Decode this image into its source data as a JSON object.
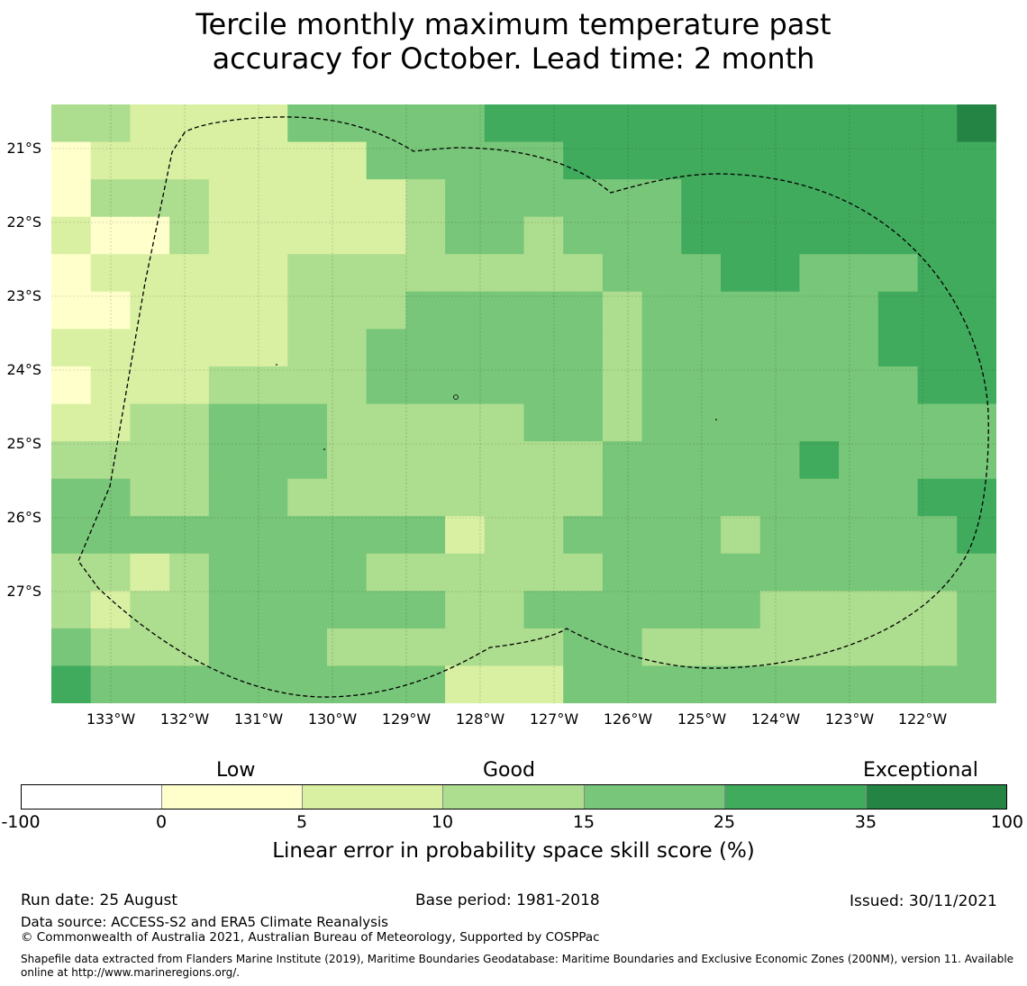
{
  "title_line1": "Tercile monthly maximum temperature past",
  "title_line2": "accuracy for October. Lead time: 2 month",
  "colors": {
    "lt0": "#ffffff",
    "b0_5": "#ffffcc",
    "b5_10": "#d9f0a3",
    "b10_15": "#addd8e",
    "b15_25": "#78c679",
    "b25_35": "#41ab5d",
    "b35_100": "#238443"
  },
  "chart_data": {
    "type": "heatmap",
    "lon_ticks": [
      "133°W",
      "132°W",
      "131°W",
      "130°W",
      "129°W",
      "128°W",
      "127°W",
      "126°W",
      "125°W",
      "124°W",
      "123°W",
      "122°W"
    ],
    "lat_ticks": [
      "21°S",
      "22°S",
      "23°S",
      "24°S",
      "25°S",
      "26°S",
      "27°S"
    ],
    "grid_legend": "cell value = colour class (0:<0, 1:0-5, 2:5-10, 3:10-15, 4:15-25, 5:25-35, 6:35-100)",
    "grid": [
      [
        3,
        3,
        2,
        2,
        2,
        2,
        4,
        4,
        4,
        4,
        4,
        5,
        5,
        5,
        5,
        5,
        5,
        5,
        5,
        5,
        5,
        5,
        5,
        6
      ],
      [
        1,
        2,
        2,
        2,
        2,
        2,
        2,
        2,
        4,
        4,
        4,
        4,
        4,
        5,
        5,
        5,
        5,
        5,
        5,
        5,
        5,
        5,
        5,
        5
      ],
      [
        1,
        3,
        3,
        3,
        2,
        2,
        2,
        2,
        2,
        3,
        4,
        4,
        4,
        4,
        4,
        4,
        5,
        5,
        5,
        5,
        5,
        5,
        5,
        5
      ],
      [
        2,
        1,
        1,
        3,
        2,
        2,
        2,
        2,
        2,
        3,
        4,
        4,
        3,
        4,
        4,
        4,
        5,
        5,
        5,
        5,
        5,
        5,
        5,
        5
      ],
      [
        1,
        2,
        2,
        2,
        2,
        2,
        3,
        3,
        3,
        3,
        3,
        3,
        3,
        3,
        4,
        4,
        4,
        5,
        5,
        4,
        4,
        4,
        5,
        5
      ],
      [
        1,
        1,
        2,
        2,
        2,
        2,
        3,
        3,
        3,
        4,
        4,
        4,
        4,
        4,
        3,
        4,
        4,
        4,
        4,
        4,
        4,
        5,
        5,
        5
      ],
      [
        2,
        2,
        2,
        2,
        2,
        2,
        3,
        3,
        4,
        4,
        4,
        4,
        4,
        4,
        3,
        4,
        4,
        4,
        4,
        4,
        4,
        5,
        5,
        5
      ],
      [
        1,
        2,
        2,
        2,
        3,
        3,
        3,
        3,
        4,
        4,
        4,
        4,
        4,
        4,
        3,
        4,
        4,
        4,
        4,
        4,
        4,
        4,
        5,
        5
      ],
      [
        2,
        2,
        3,
        3,
        4,
        4,
        4,
        3,
        3,
        3,
        3,
        3,
        4,
        4,
        3,
        4,
        4,
        4,
        4,
        4,
        4,
        4,
        4,
        4
      ],
      [
        3,
        3,
        3,
        3,
        4,
        4,
        4,
        3,
        3,
        3,
        3,
        3,
        3,
        3,
        4,
        4,
        4,
        4,
        4,
        5,
        4,
        4,
        4,
        4
      ],
      [
        4,
        4,
        3,
        3,
        4,
        4,
        3,
        3,
        3,
        3,
        3,
        3,
        3,
        3,
        4,
        4,
        4,
        4,
        4,
        4,
        4,
        4,
        5,
        5
      ],
      [
        4,
        4,
        4,
        4,
        4,
        4,
        4,
        4,
        4,
        4,
        2,
        3,
        3,
        4,
        4,
        4,
        4,
        3,
        4,
        4,
        4,
        4,
        4,
        5
      ],
      [
        3,
        3,
        2,
        3,
        4,
        4,
        4,
        4,
        3,
        3,
        3,
        3,
        3,
        3,
        4,
        4,
        4,
        4,
        4,
        4,
        4,
        4,
        4,
        4
      ],
      [
        3,
        2,
        3,
        3,
        4,
        4,
        4,
        4,
        4,
        4,
        3,
        3,
        4,
        4,
        4,
        4,
        4,
        4,
        3,
        3,
        3,
        3,
        3,
        4
      ],
      [
        4,
        3,
        3,
        3,
        4,
        4,
        4,
        3,
        3,
        3,
        3,
        3,
        3,
        4,
        4,
        3,
        3,
        3,
        3,
        3,
        3,
        3,
        3,
        4
      ],
      [
        5,
        4,
        4,
        4,
        4,
        4,
        4,
        4,
        4,
        4,
        2,
        2,
        2,
        4,
        4,
        4,
        4,
        4,
        4,
        4,
        4,
        4,
        4,
        4
      ]
    ]
  },
  "colorbar": {
    "category_low": "Low",
    "category_good": "Good",
    "category_exceptional": "Exceptional",
    "ticks": [
      "-100",
      "0",
      "5",
      "10",
      "15",
      "25",
      "35",
      "100"
    ],
    "title": "Linear error in probability space skill score (%)"
  },
  "footer": {
    "run_date": "Run date: 25 August",
    "base_period": "Base period: 1981-2018",
    "issued": "Issued: 30/11/2021",
    "data_source": "Data source: ACCESS-S2 and ERA5 Climate Reanalysis",
    "copyright": "© Commonwealth of Australia 2021, Australian Bureau of Meteorology, Supported by COSPPac",
    "shapefile": "Shapefile data extracted from Flanders Marine Institute (2019), Maritime Boundaries Geodatabase: Maritime Boundaries and Exclusive Economic Zones (200NM), version 11. Available online at http://www.marineregions.org/."
  }
}
